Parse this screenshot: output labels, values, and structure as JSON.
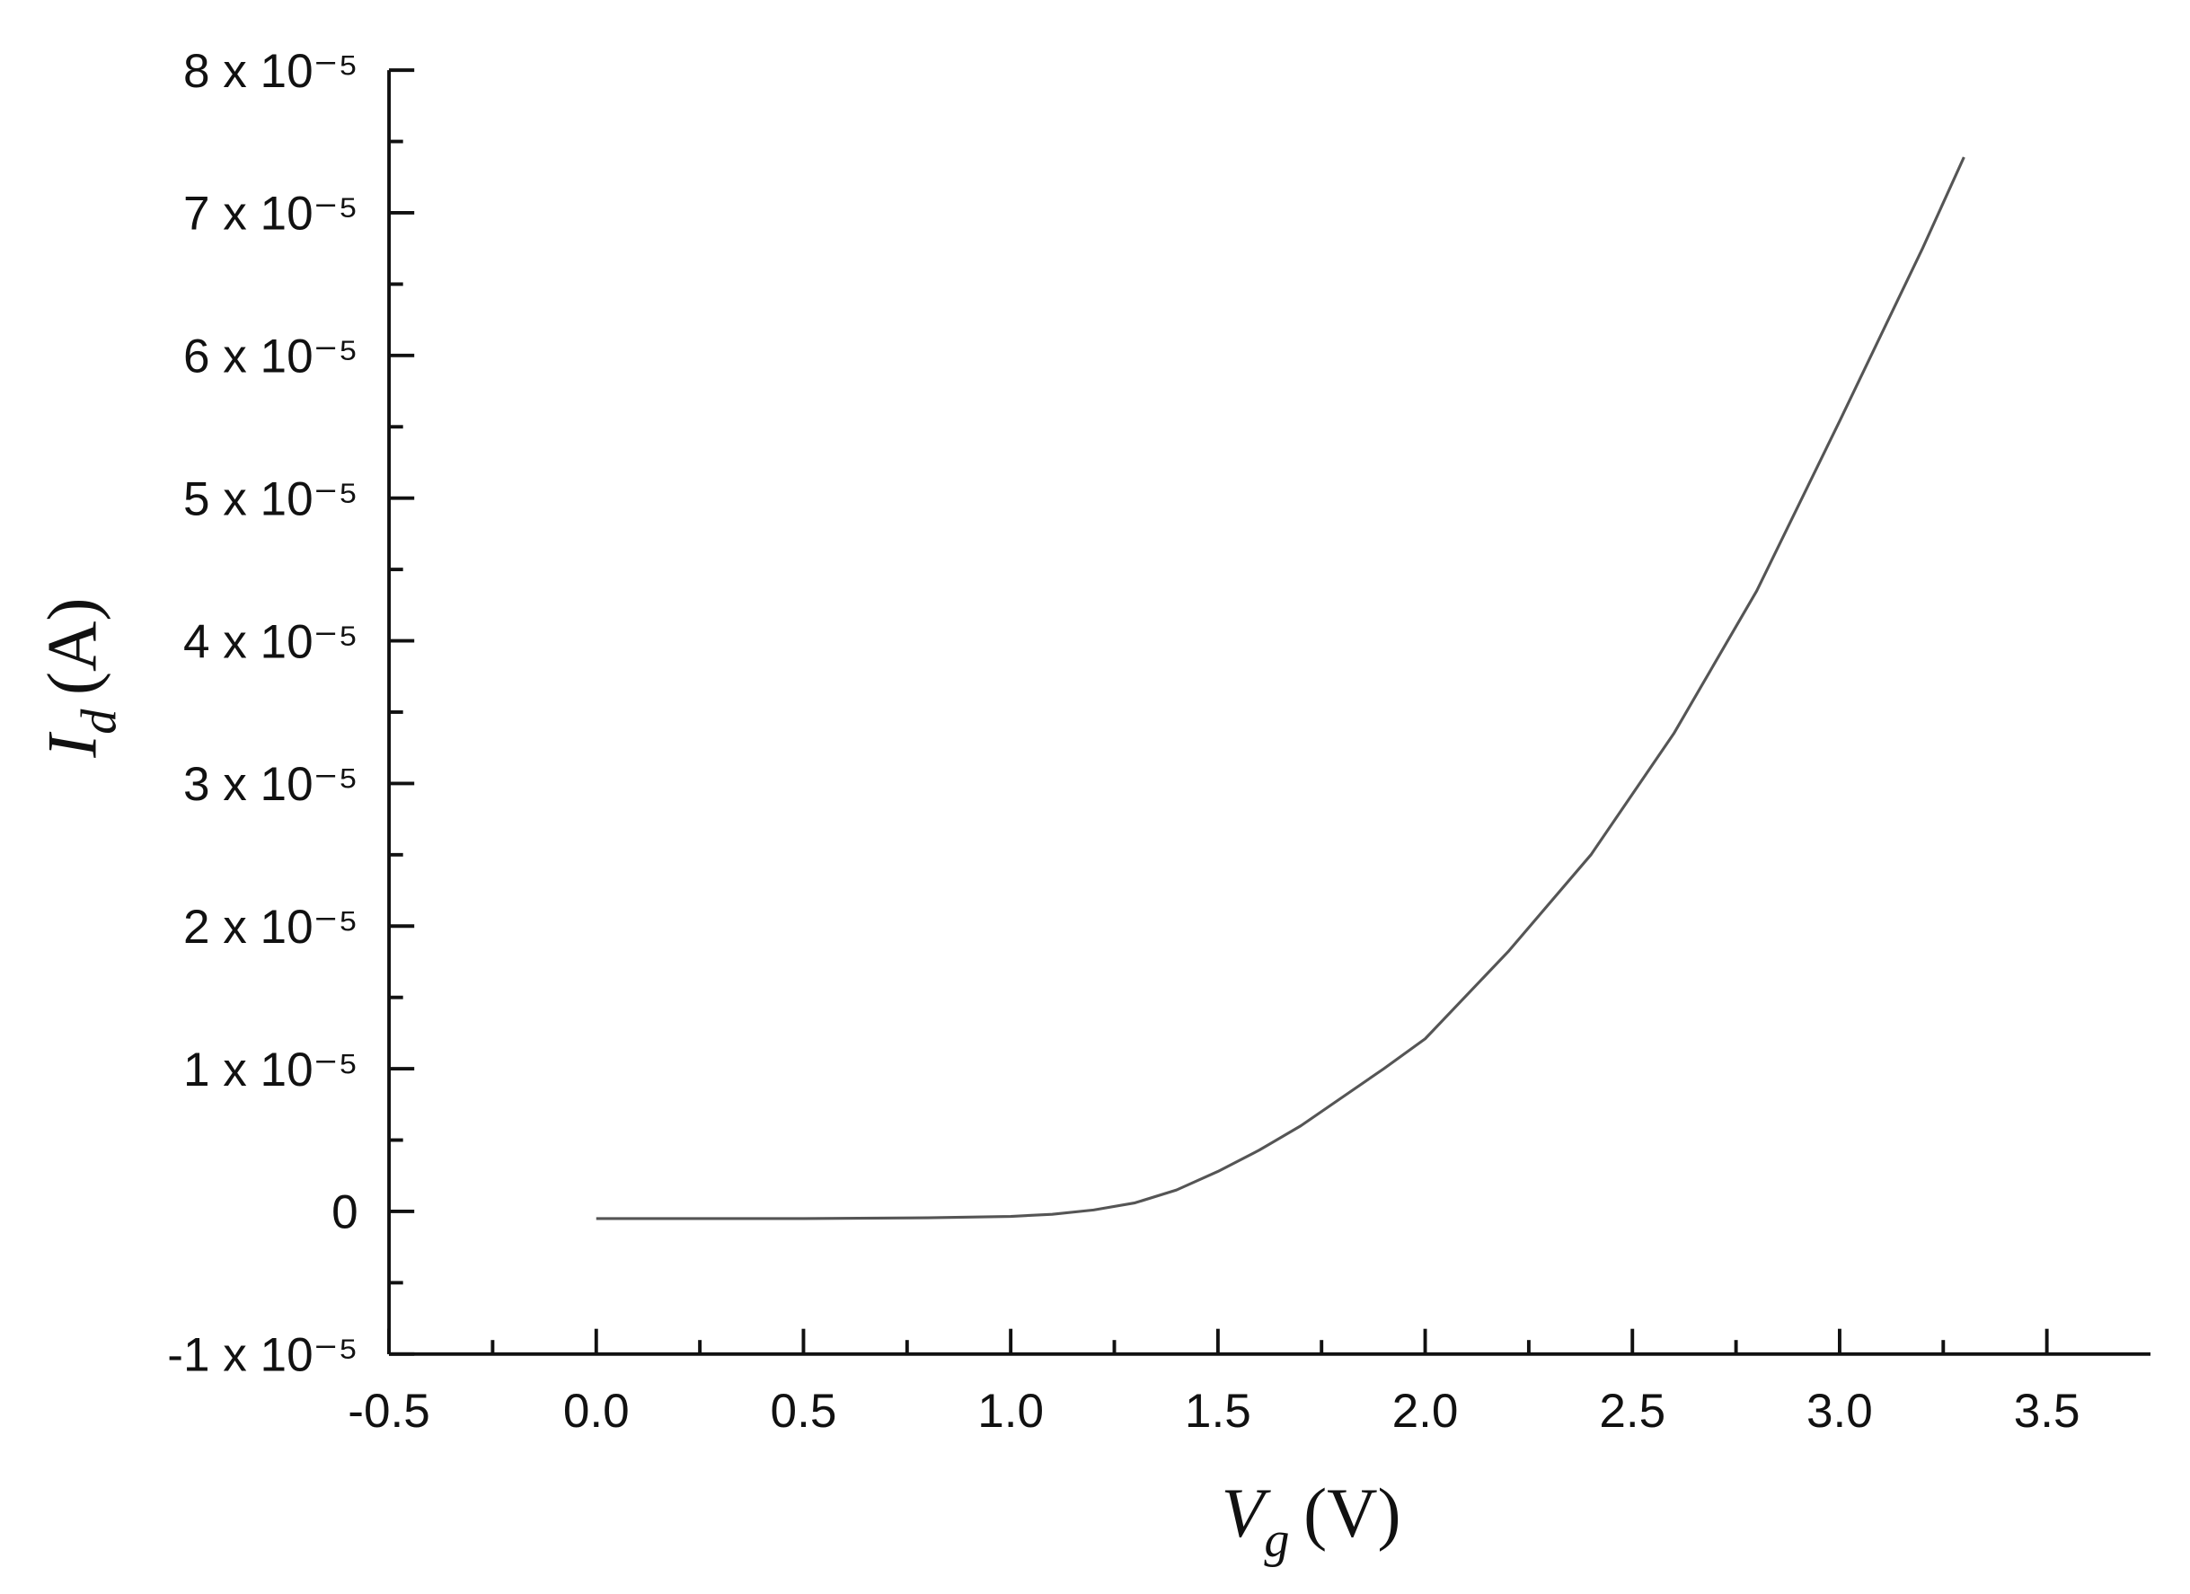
{
  "chart_data": {
    "type": "line",
    "xlabel": {
      "symbol": "V",
      "subscript": "g",
      "unit": "(V)"
    },
    "ylabel": {
      "symbol": "I",
      "subscript": "d",
      "unit": "(A)"
    },
    "xlim": [
      -0.5,
      3.75
    ],
    "ylim": [
      -1e-05,
      8e-05
    ],
    "xticks": [
      -0.5,
      {
        "value": 0,
        "label": "0.0"
      },
      0.5,
      {
        "value": 1,
        "label": "1.0"
      },
      1.5,
      {
        "value": 2,
        "label": "2.0"
      },
      2.5,
      {
        "value": 3,
        "label": "3.0"
      },
      3.5
    ],
    "xticks_minor": [
      -0.25,
      0.25,
      0.75,
      1.25,
      1.75,
      2.25,
      2.75,
      3.25
    ],
    "yticks": [
      {
        "value": -1e-05,
        "label": "-1 x 10⁻⁵"
      },
      0,
      {
        "value": 1e-05,
        "label": "1 x 10⁻⁵"
      },
      {
        "value": 2e-05,
        "label": "2 x 10⁻⁵"
      },
      {
        "value": 3e-05,
        "label": "3 x 10⁻⁵"
      },
      {
        "value": 4e-05,
        "label": "4 x 10⁻⁵"
      },
      {
        "value": 5e-05,
        "label": "5 x 10⁻⁵"
      },
      {
        "value": 6e-05,
        "label": "6 x 10⁻⁵"
      },
      {
        "value": 7e-05,
        "label": "7 x 10⁻⁵"
      },
      {
        "value": 8e-05,
        "label": "8 x 10⁻⁵"
      }
    ],
    "yticks_minor": [
      -5e-06,
      5e-06,
      1.5e-05,
      2.5e-05,
      3.5e-05,
      4.5e-05,
      5.5e-05,
      6.5e-05,
      7.5e-05
    ],
    "x": [
      0,
      0.5,
      0.8,
      1.0,
      1.1,
      1.2,
      1.3,
      1.4,
      1.5,
      1.6,
      1.7,
      1.8,
      1.9,
      2.0,
      2.2,
      2.4,
      2.6,
      2.8,
      3.0,
      3.2,
      3.3
    ],
    "series": [
      {
        "color": "#555555",
        "values": [
          -5e-07,
          -5e-07,
          -4.5e-07,
          -3.5e-07,
          -2e-07,
          1e-07,
          6e-07,
          1.5e-06,
          2.8e-06,
          4.3e-06,
          6e-06,
          8e-06,
          1e-05,
          1.21e-05,
          1.82e-05,
          2.5e-05,
          3.35e-05,
          4.35e-05,
          5.54e-05,
          6.75e-05,
          7.39e-05
        ]
      }
    ]
  }
}
